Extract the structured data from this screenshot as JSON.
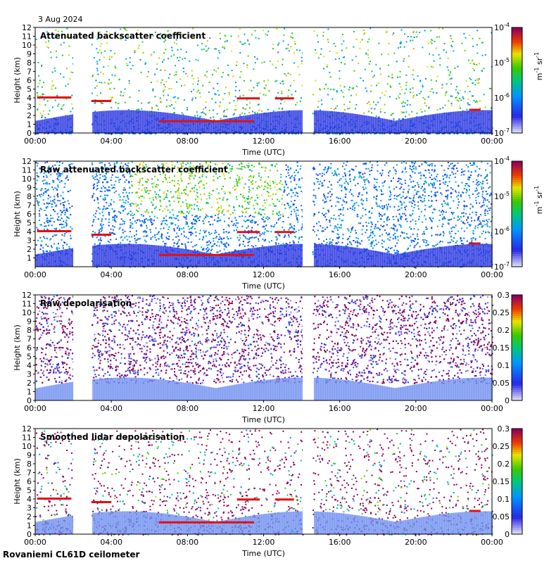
{
  "date": "3 Aug 2024",
  "footer": "Rovaniemi CL61D ceilometer",
  "chart_data": [
    {
      "type": "heatmap",
      "title": "Attenuated backscatter coefficient",
      "xlabel": "Time (UTC)",
      "ylabel": "Height (km)",
      "xticks": [
        "00:00",
        "04:00",
        "08:00",
        "12:00",
        "16:00",
        "20:00",
        "00:00"
      ],
      "yticks": [
        "0",
        "1",
        "2",
        "3",
        "4",
        "5",
        "6",
        "7",
        "8",
        "9",
        "10",
        "11",
        "12"
      ],
      "ylim": [
        0,
        12
      ],
      "xlim_hours": [
        0,
        24
      ],
      "data_gaps_hours": [
        [
          2.0,
          2.95
        ],
        [
          14.05,
          14.55
        ]
      ],
      "colorbar": {
        "scale": "log",
        "ticks": [
          {
            "base": "10",
            "exp": "-4"
          },
          {
            "base": "10",
            "exp": "-5"
          },
          {
            "base": "10",
            "exp": "-6"
          },
          {
            "base": "10",
            "exp": "-7"
          }
        ],
        "unit_m": "m",
        "unit_m_exp": "-1",
        "unit_sr": " sr",
        "unit_sr_exp": "-1"
      }
    },
    {
      "type": "heatmap",
      "title": "Raw attenuated backscatter coefficient",
      "xlabel": "Time (UTC)",
      "ylabel": "Height (km)",
      "xticks": [
        "00:00",
        "04:00",
        "08:00",
        "12:00",
        "16:00",
        "20:00",
        "00:00"
      ],
      "yticks": [
        "1",
        "2",
        "3",
        "4",
        "5",
        "6",
        "7",
        "8",
        "9",
        "10",
        "11",
        "12"
      ],
      "ylim": [
        0,
        12
      ],
      "xlim_hours": [
        0,
        24
      ],
      "data_gaps_hours": [
        [
          2.0,
          2.95
        ],
        [
          14.05,
          14.55
        ]
      ],
      "colorbar": {
        "scale": "log",
        "ticks": [
          {
            "base": "10",
            "exp": "-4"
          },
          {
            "base": "10",
            "exp": "-5"
          },
          {
            "base": "10",
            "exp": "-6"
          },
          {
            "base": "10",
            "exp": "-7"
          }
        ],
        "unit_m": "m",
        "unit_m_exp": "-1",
        "unit_sr": " sr",
        "unit_sr_exp": "-1"
      }
    },
    {
      "type": "heatmap",
      "title": "Raw depolarisation",
      "xlabel": "Time (UTC)",
      "ylabel": "Height (km)",
      "xticks": [
        "00:00",
        "04:00",
        "08:00",
        "12:00",
        "16:00",
        "20:00",
        "00:00"
      ],
      "yticks": [
        "0",
        "1",
        "2",
        "3",
        "4",
        "5",
        "6",
        "7",
        "8",
        "9",
        "10",
        "11",
        "12"
      ],
      "ylim": [
        0,
        12
      ],
      "xlim_hours": [
        0,
        24
      ],
      "data_gaps_hours": [
        [
          2.0,
          2.95
        ],
        [
          14.05,
          14.55
        ]
      ],
      "colorbar": {
        "scale": "linear",
        "ticks": [
          "0.3",
          "0.25",
          "0.2",
          "0.15",
          "0.1",
          "0.05",
          "0"
        ],
        "range": [
          0,
          0.3
        ]
      }
    },
    {
      "type": "heatmap",
      "title": "Smoothed lidar depolarisation",
      "xlabel": "Time (UTC)",
      "ylabel": "Height (km)",
      "xticks": [
        "00:00",
        "04:00",
        "08:00",
        "12:00",
        "16:00",
        "20:00",
        "00:00"
      ],
      "yticks": [
        "0",
        "1",
        "2",
        "3",
        "4",
        "5",
        "6",
        "7",
        "8",
        "9",
        "10",
        "11",
        "12"
      ],
      "ylim": [
        0,
        12
      ],
      "xlim_hours": [
        0,
        24
      ],
      "data_gaps_hours": [
        [
          2.0,
          2.95
        ],
        [
          14.05,
          14.55
        ]
      ],
      "colorbar": {
        "scale": "linear",
        "ticks": [
          "0.3",
          "0.25",
          "0.2",
          "0.15",
          "0.1",
          "0.05",
          "0"
        ],
        "range": [
          0,
          0.3
        ]
      }
    }
  ]
}
